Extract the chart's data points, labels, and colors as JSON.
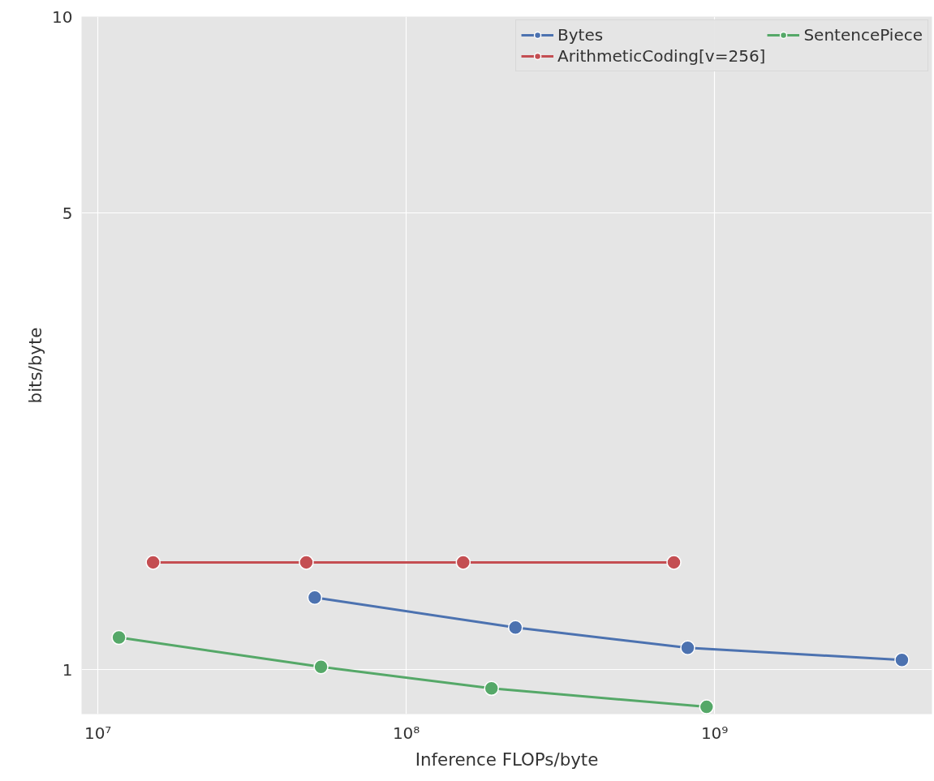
{
  "chart_data": {
    "type": "line",
    "xlabel": "Inference FLOPs/byte",
    "ylabel": "bits/byte",
    "log": "xy",
    "grid": true,
    "legend": "top right",
    "marker": "circle",
    "line_style": "solid",
    "xlim": [
      8850000.0,
      5070000000.0
    ],
    "ylim": [
      0.855,
      10
    ],
    "xticks": [
      {
        "value": 10000000.0,
        "label": "10⁷"
      },
      {
        "value": 100000000.0,
        "label": "10⁸"
      },
      {
        "value": 1000000000.0,
        "label": "10⁹"
      }
    ],
    "yticks": [
      1,
      5,
      10
    ],
    "series": [
      {
        "name": "Bytes",
        "color": "#4c72b0",
        "x": [
          50500000.0,
          226000000.0,
          818000000.0,
          4050000000.0
        ],
        "values": [
          1.29,
          1.16,
          1.08,
          1.035
        ]
      },
      {
        "name": "ArithmeticCoding[v=256]",
        "color": "#c44e52",
        "x": [
          15100000.0,
          47400000.0,
          153000000.0,
          738000000.0
        ],
        "values": [
          1.46,
          1.46,
          1.46,
          1.46
        ]
      },
      {
        "name": "SentencePiece",
        "color": "#55a868",
        "x": [
          11700000.0,
          52900000.0,
          189000000.0,
          942000000.0
        ],
        "values": [
          1.12,
          1.01,
          0.936,
          0.877
        ]
      }
    ]
  }
}
